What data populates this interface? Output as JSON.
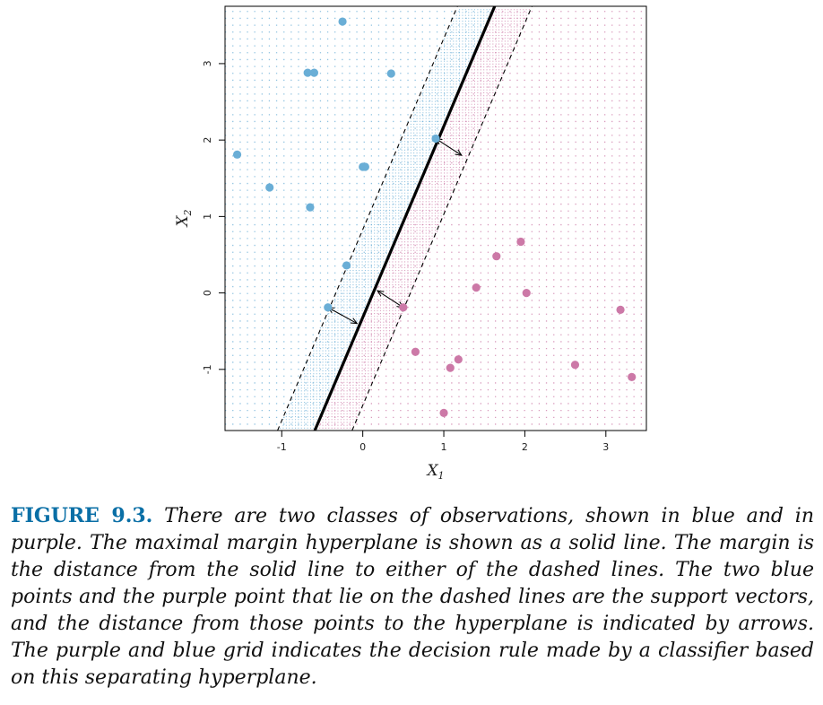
{
  "chart_data": {
    "type": "scatter",
    "xlabel": "X",
    "xlabel_sub": "1",
    "ylabel": "X",
    "ylabel_sub": "2",
    "xlim": [
      -1.7,
      3.5
    ],
    "ylim": [
      -1.8,
      3.75
    ],
    "xticks": [
      "-1",
      "0",
      "1",
      "2",
      "3"
    ],
    "xtick_values": [
      -1,
      0,
      1,
      2,
      3
    ],
    "yticks": [
      "-1",
      "0",
      "1",
      "2",
      "3"
    ],
    "ytick_values": [
      -1,
      0,
      1,
      2,
      3
    ],
    "hyperplane": {
      "slope": 2.5,
      "intercept": -0.32
    },
    "margin_offset_x": 0.46,
    "grid_step": 0.09,
    "colors": {
      "blue": "#6aaed6",
      "purple": "#cc79a7",
      "line": "#000000"
    },
    "series": [
      {
        "color": "blue",
        "points": [
          [
            -0.25,
            3.55
          ],
          [
            -0.68,
            2.88
          ],
          [
            -0.6,
            2.88
          ],
          [
            0.35,
            2.87
          ],
          [
            0.9,
            2.02
          ],
          [
            -1.55,
            1.81
          ],
          [
            0.0,
            1.65
          ],
          [
            0.03,
            1.65
          ],
          [
            -1.15,
            1.38
          ],
          [
            -0.65,
            1.12
          ],
          [
            -0.2,
            0.36
          ],
          [
            -0.43,
            -0.19
          ]
        ]
      },
      {
        "color": "purple",
        "points": [
          [
            1.95,
            0.67
          ],
          [
            1.65,
            0.48
          ],
          [
            1.4,
            0.07
          ],
          [
            2.02,
            0.0
          ],
          [
            0.5,
            -0.19
          ],
          [
            3.18,
            -0.22
          ],
          [
            0.65,
            -0.77
          ],
          [
            1.18,
            -0.87
          ],
          [
            1.08,
            -0.98
          ],
          [
            2.62,
            -0.94
          ],
          [
            3.32,
            -1.1
          ],
          [
            1.0,
            -1.57
          ]
        ]
      }
    ],
    "arrows": [
      {
        "from": [
          0.9,
          2.02
        ],
        "to": [
          1.22,
          1.8
        ]
      },
      {
        "from": [
          -0.43,
          -0.19
        ],
        "to": [
          -0.07,
          -0.4
        ]
      },
      {
        "from": [
          0.5,
          -0.19
        ],
        "to": [
          0.18,
          0.03
        ]
      }
    ]
  },
  "caption": {
    "label": "FIGURE 9.3.",
    "text": "There are two classes of observations, shown in blue and in purple. The maximal margin hyperplane is shown as a solid line. The margin is the distance from the solid line to either of the dashed lines. The two blue points and the purple point that lie on the dashed lines are the support vectors, and the distance from those points to the hyperplane is indicated by arrows. The purple and blue grid indicates the decision rule made by a classifier based on this separating hyperplane."
  }
}
